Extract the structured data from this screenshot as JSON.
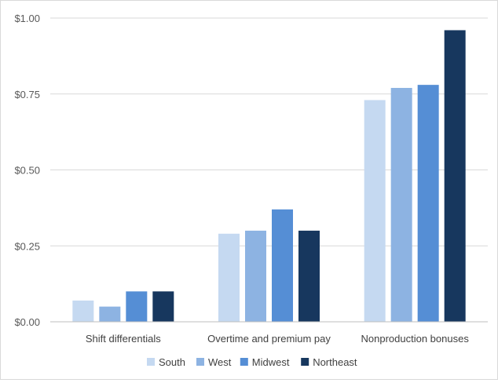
{
  "chart_data": {
    "type": "bar",
    "categories": [
      "Shift differentials",
      "Overtime and premium pay",
      "Nonproduction bonuses"
    ],
    "series": [
      {
        "name": "South",
        "color": "#c5d9f1",
        "values": [
          0.07,
          0.29,
          0.73
        ]
      },
      {
        "name": "West",
        "color": "#8db3e2",
        "values": [
          0.05,
          0.3,
          0.77
        ]
      },
      {
        "name": "Midwest",
        "color": "#558ed5",
        "values": [
          0.1,
          0.37,
          0.78
        ]
      },
      {
        "name": "Northeast",
        "color": "#17375e",
        "values": [
          0.1,
          0.3,
          0.96
        ]
      }
    ],
    "y_ticks": [
      "$0.00",
      "$0.25",
      "$0.50",
      "$0.75",
      "$1.00"
    ],
    "ylim": [
      0,
      1.0
    ],
    "grid": true,
    "legend_position": "bottom"
  }
}
